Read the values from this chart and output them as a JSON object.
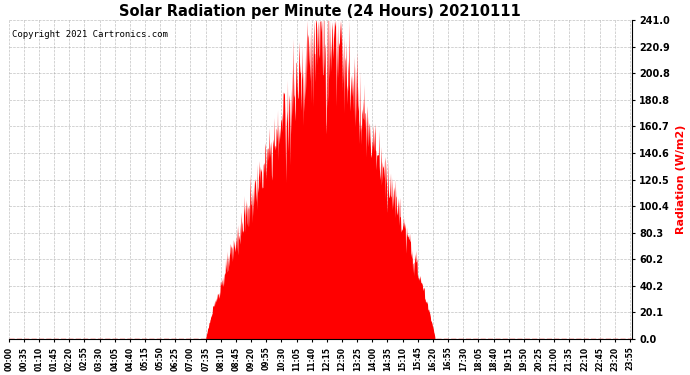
{
  "title": "Solar Radiation per Minute (24 Hours) 20210111",
  "ylabel": "Radiation (W/m2)",
  "ylabel_color": "#ff0000",
  "copyright_text": "Copyright 2021 Cartronics.com",
  "background_color": "#ffffff",
  "fill_color": "#ff0000",
  "line_color": "#ff0000",
  "grid_color": "#999999",
  "ymin": 0.0,
  "ymax": 241.0,
  "yticks": [
    0.0,
    20.1,
    40.2,
    60.2,
    80.3,
    100.4,
    120.5,
    140.6,
    160.7,
    180.8,
    200.8,
    220.9,
    241.0
  ],
  "total_minutes": 1440,
  "sunrise_minute": 455,
  "sunset_minute": 985,
  "peak_minute": 735,
  "peak_value": 241.0,
  "tick_step": 35
}
